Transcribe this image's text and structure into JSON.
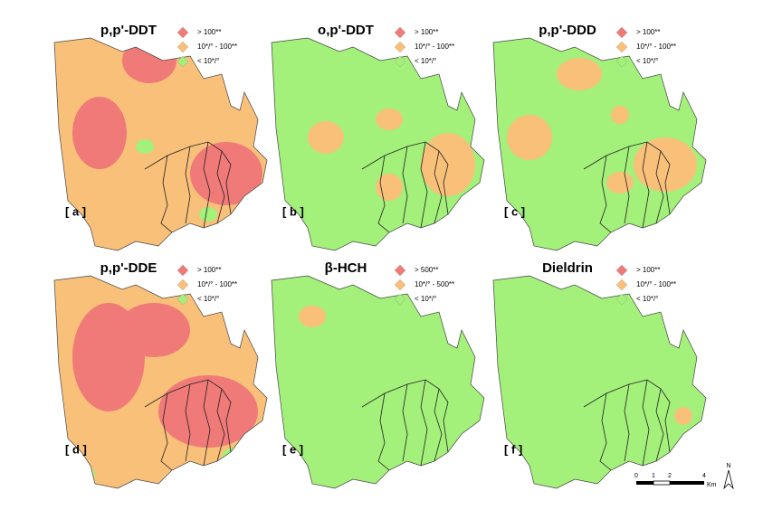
{
  "panels": [
    {
      "title": "p,p'-DDT",
      "label": "[ a ]",
      "legend": [
        "> 100**",
        "10*/° - 100**",
        "< 10*/°"
      ]
    },
    {
      "title": "o,p'-DDT",
      "label": "[ b ]",
      "legend": [
        "> 100**",
        "10*/° - 100**",
        "< 10*/°"
      ]
    },
    {
      "title": "p,p'-DDD",
      "label": "[ c ]",
      "legend": [
        "> 100**",
        "10*/° - 100**",
        "< 10*/°"
      ]
    },
    {
      "title": "p,p'-DDE",
      "label": "[ d ]",
      "legend": [
        "> 100**",
        "10*/° - 100**",
        "< 10*/°"
      ]
    },
    {
      "title": "β-HCH",
      "label": "[ e ]",
      "legend": [
        "> 500**",
        "10*/° - 500**",
        "< 10*/°"
      ]
    },
    {
      "title": "Dieldrin",
      "label": "[ f ]",
      "legend": [
        "> 100**",
        "10*/° - 100**",
        "< 10*/°"
      ]
    }
  ],
  "scale_bar": {
    "ticks": [
      "0",
      "1",
      "2",
      "4"
    ],
    "unit": "Km"
  },
  "north": "N"
}
